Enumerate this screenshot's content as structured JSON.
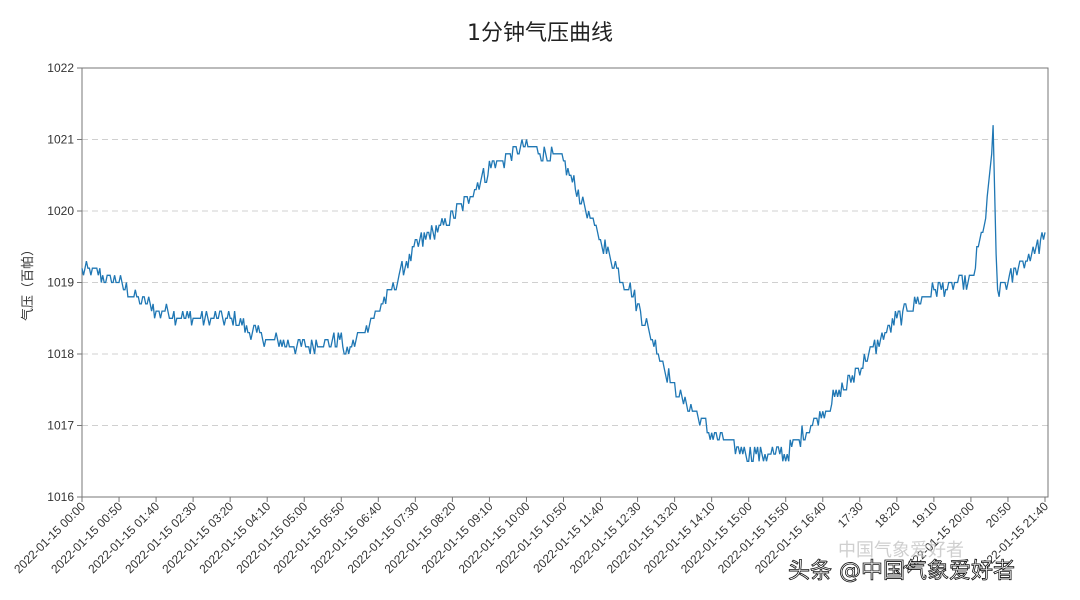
{
  "chart_data": {
    "type": "line",
    "title": "1分钟气压曲线",
    "ylabel": "气压（百帕）",
    "xlabel": "",
    "ylim": [
      1016,
      1022
    ],
    "yticks": [
      1016,
      1017,
      1018,
      1019,
      1020,
      1021,
      1022
    ],
    "grid": "horizontal-dashed",
    "legend": "none",
    "x_tick_labels": [
      "2022-01-15 00:00",
      "2022-01-15 00:50",
      "2022-01-15 01:40",
      "2022-01-15 02:30",
      "2022-01-15 03:20",
      "2022-01-15 04:10",
      "2022-01-15 05:00",
      "2022-01-15 05:50",
      "2022-01-15 06:40",
      "2022-01-15 07:30",
      "2022-01-15 08:20",
      "2022-01-15 09:10",
      "2022-01-15 10:00",
      "2022-01-15 10:50",
      "2022-01-15 11:40",
      "2022-01-15 12:30",
      "2022-01-15 13:20",
      "2022-01-15 14:10",
      "2022-01-15 15:00",
      "2022-01-15 15:50",
      "2022-01-15 16:40",
      "17:30",
      "18:20",
      "19:10",
      "2022-01-15 20:00",
      "20:50",
      "2022-01-15 21:40"
    ],
    "series": [
      {
        "color": "#1f77b4",
        "x": [
          "00:00",
          "00:50",
          "01:40",
          "02:30",
          "03:20",
          "04:10",
          "05:00",
          "05:50",
          "05:55",
          "06:40",
          "07:30",
          "08:20",
          "09:10",
          "10:00",
          "10:50",
          "11:40",
          "12:30",
          "13:20",
          "14:10",
          "15:00",
          "15:50",
          "16:40",
          "17:30",
          "18:20",
          "19:10",
          "20:00",
          "20:20",
          "20:30",
          "20:35",
          "20:50",
          "21:10",
          "21:40"
        ],
        "values": [
          1019.2,
          1019.0,
          1018.6,
          1018.5,
          1018.5,
          1018.2,
          1018.1,
          1018.2,
          1018.0,
          1018.6,
          1019.5,
          1019.9,
          1020.6,
          1020.9,
          1020.7,
          1019.6,
          1018.7,
          1017.5,
          1016.9,
          1016.6,
          1016.6,
          1017.2,
          1017.8,
          1018.5,
          1018.9,
          1019.0,
          1019.9,
          1021.1,
          1018.9,
          1019.0,
          1019.3,
          1019.6
        ]
      }
    ]
  },
  "watermark": {
    "main": "头条 @中国气象爱好者",
    "faint": "中国气象爱好者"
  }
}
